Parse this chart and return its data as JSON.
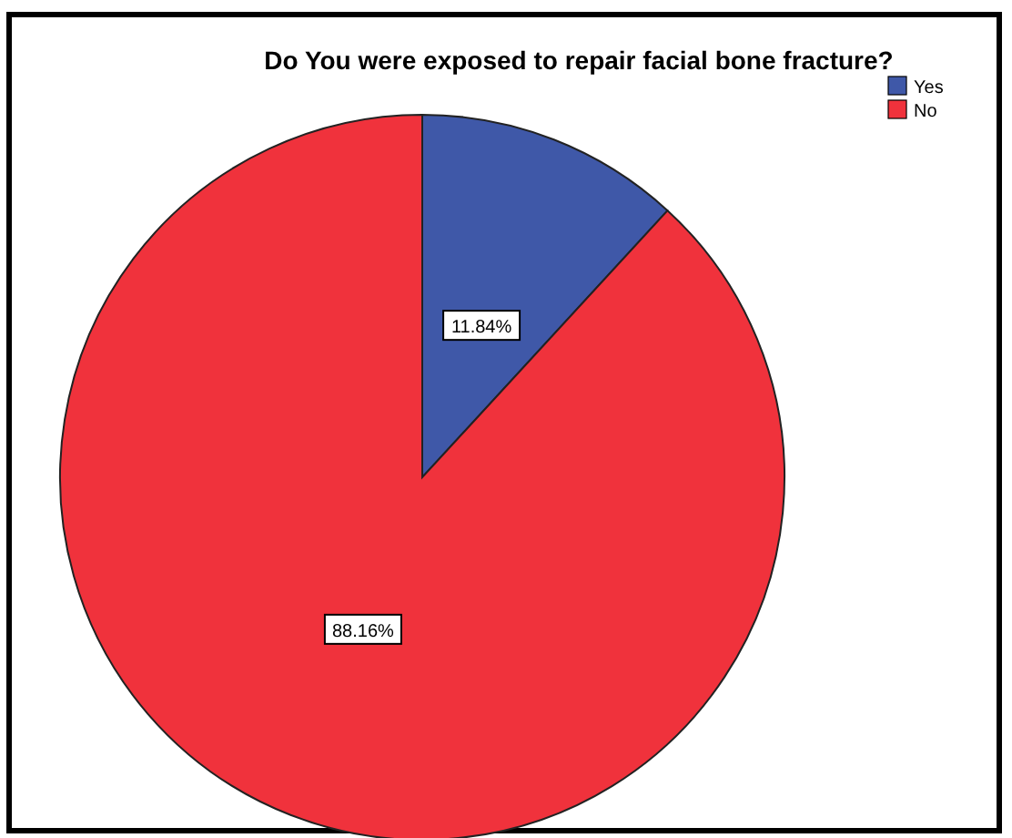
{
  "chart_data": {
    "type": "pie",
    "title": "Do You were exposed to repair facial bone fracture?",
    "categories": [
      "Yes",
      "No"
    ],
    "values": [
      11.84,
      88.16
    ],
    "colors": [
      "#3f58a8",
      "#f0323c"
    ],
    "value_labels": [
      "11.84%",
      "88.16%"
    ],
    "legend": "top right"
  }
}
